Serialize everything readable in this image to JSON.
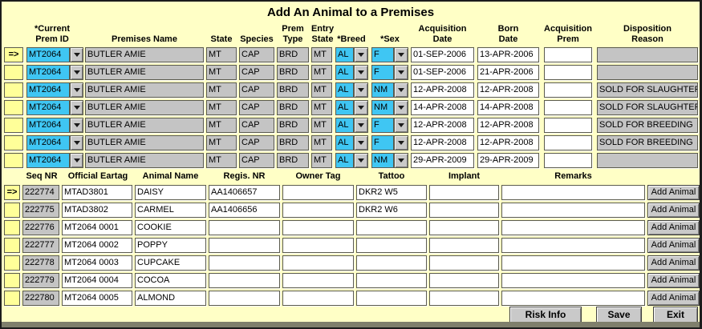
{
  "title": "Add An Animal to a Premises",
  "colors": {
    "background": "#FFFFC6",
    "field_cyan": "#3FC6F3",
    "field_gray": "#C4C4C4",
    "marker_yellow": "#FFFF99",
    "button_gray": "#C9C9C9"
  },
  "premises_table": {
    "headers": {
      "current_prem": {
        "line1": "*Current",
        "line2": "Prem ID"
      },
      "premises_name": {
        "line2": "Premises Name"
      },
      "state": {
        "line2": "State"
      },
      "species": {
        "line2": "Species"
      },
      "prem_type": {
        "line1": "Prem",
        "line2": "Type"
      },
      "entry_state": {
        "line1": "Entry",
        "line2": "State"
      },
      "breed": {
        "line2": "*Breed"
      },
      "sex": {
        "line2": "*Sex"
      },
      "acquisition_date": {
        "line1": "Acquisition",
        "line2": "Date"
      },
      "born_date": {
        "line1": "Born",
        "line2": "Date"
      },
      "acquisition_prem": {
        "line1": "Acquisition",
        "line2": "Prem"
      },
      "disposition_reason": {
        "line1": "Disposition",
        "line2": "Reason"
      }
    },
    "rows": [
      {
        "marker": "=>",
        "prem_id": "MT2064",
        "premises_name": "BUTLER AMIE",
        "state": "MT",
        "species": "CAP",
        "prem_type": "BRD",
        "entry_state": "MT",
        "breed": "AL",
        "sex": "F",
        "acquisition_date": "01-SEP-2006",
        "born_date": "13-APR-2006",
        "acquisition_prem": "",
        "disposition_reason": ""
      },
      {
        "marker": "",
        "prem_id": "MT2064",
        "premises_name": "BUTLER AMIE",
        "state": "MT",
        "species": "CAP",
        "prem_type": "BRD",
        "entry_state": "MT",
        "breed": "AL",
        "sex": "F",
        "acquisition_date": "01-SEP-2006",
        "born_date": "21-APR-2006",
        "acquisition_prem": "",
        "disposition_reason": ""
      },
      {
        "marker": "",
        "prem_id": "MT2064",
        "premises_name": "BUTLER AMIE",
        "state": "MT",
        "species": "CAP",
        "prem_type": "BRD",
        "entry_state": "MT",
        "breed": "AL",
        "sex": "NM",
        "acquisition_date": "12-APR-2008",
        "born_date": "12-APR-2008",
        "acquisition_prem": "",
        "disposition_reason": "SOLD FOR SLAUGHTER"
      },
      {
        "marker": "",
        "prem_id": "MT2064",
        "premises_name": "BUTLER AMIE",
        "state": "MT",
        "species": "CAP",
        "prem_type": "BRD",
        "entry_state": "MT",
        "breed": "AL",
        "sex": "NM",
        "acquisition_date": "14-APR-2008",
        "born_date": "14-APR-2008",
        "acquisition_prem": "",
        "disposition_reason": "SOLD FOR SLAUGHTER"
      },
      {
        "marker": "",
        "prem_id": "MT2064",
        "premises_name": "BUTLER AMIE",
        "state": "MT",
        "species": "CAP",
        "prem_type": "BRD",
        "entry_state": "MT",
        "breed": "AL",
        "sex": "F",
        "acquisition_date": "12-APR-2008",
        "born_date": "12-APR-2008",
        "acquisition_prem": "",
        "disposition_reason": "SOLD FOR BREEDING"
      },
      {
        "marker": "",
        "prem_id": "MT2064",
        "premises_name": "BUTLER AMIE",
        "state": "MT",
        "species": "CAP",
        "prem_type": "BRD",
        "entry_state": "MT",
        "breed": "AL",
        "sex": "F",
        "acquisition_date": "12-APR-2008",
        "born_date": "12-APR-2008",
        "acquisition_prem": "",
        "disposition_reason": "SOLD FOR BREEDING"
      },
      {
        "marker": "",
        "prem_id": "MT2064",
        "premises_name": "BUTLER AMIE",
        "state": "MT",
        "species": "CAP",
        "prem_type": "BRD",
        "entry_state": "MT",
        "breed": "AL",
        "sex": "NM",
        "acquisition_date": "29-APR-2009",
        "born_date": "29-APR-2009",
        "acquisition_prem": "",
        "disposition_reason": ""
      }
    ]
  },
  "animals_table": {
    "headers": {
      "seq_nr": "Seq NR",
      "official_eartag": "Official Eartag",
      "animal_name": "Animal Name",
      "regis_nr": "Regis. NR",
      "owner_tag": "Owner Tag",
      "tattoo": "Tattoo",
      "implant": "Implant",
      "remarks": "Remarks"
    },
    "add_animal_label": "Add Animal",
    "rows": [
      {
        "marker": "=>",
        "seq_nr": "222774",
        "official_eartag": "MTAD3801",
        "animal_name": "DAISY",
        "regis_nr": "AA1406657",
        "owner_tag": "",
        "tattoo": "DKR2 W5",
        "implant": "",
        "remarks": ""
      },
      {
        "marker": "",
        "seq_nr": "222775",
        "official_eartag": "MTAD3802",
        "animal_name": "CARMEL",
        "regis_nr": "AA1406656",
        "owner_tag": "",
        "tattoo": "DKR2 W6",
        "implant": "",
        "remarks": ""
      },
      {
        "marker": "",
        "seq_nr": "222776",
        "official_eartag": "MT2064 0001",
        "animal_name": "COOKIE",
        "regis_nr": "",
        "owner_tag": "",
        "tattoo": "",
        "implant": "",
        "remarks": ""
      },
      {
        "marker": "",
        "seq_nr": "222777",
        "official_eartag": "MT2064 0002",
        "animal_name": "POPPY",
        "regis_nr": "",
        "owner_tag": "",
        "tattoo": "",
        "implant": "",
        "remarks": ""
      },
      {
        "marker": "",
        "seq_nr": "222778",
        "official_eartag": "MT2064 0003",
        "animal_name": "CUPCAKE",
        "regis_nr": "",
        "owner_tag": "",
        "tattoo": "",
        "implant": "",
        "remarks": ""
      },
      {
        "marker": "",
        "seq_nr": "222779",
        "official_eartag": "MT2064 0004",
        "animal_name": "COCOA",
        "regis_nr": "",
        "owner_tag": "",
        "tattoo": "",
        "implant": "",
        "remarks": ""
      },
      {
        "marker": "",
        "seq_nr": "222780",
        "official_eartag": "MT2064 0005",
        "animal_name": "ALMOND",
        "regis_nr": "",
        "owner_tag": "",
        "tattoo": "",
        "implant": "",
        "remarks": ""
      }
    ]
  },
  "footer_buttons": {
    "risk_info": "Risk Info",
    "save": "Save",
    "exit": "Exit"
  }
}
